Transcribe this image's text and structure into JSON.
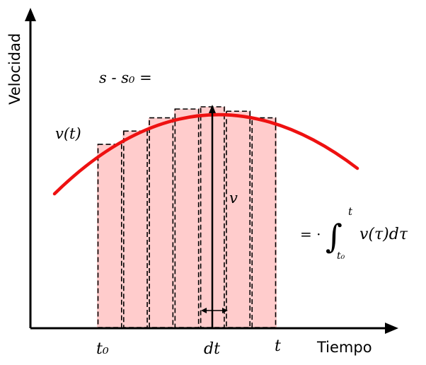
{
  "axes": {
    "y_title": "Velocidad",
    "x_title": "Tiempo"
  },
  "labels": {
    "displacement": "s - s₀ =",
    "curve": "v(t)",
    "velocity": "v",
    "t_start": "t₀",
    "t_end": "t",
    "dt": "dt"
  },
  "equation": {
    "equals": "= ·",
    "integrand": "v(τ)dτ",
    "upper_limit": "t",
    "lower_limit": "t₀"
  },
  "bars": {
    "count": 7,
    "relative_heights": [
      0.83,
      0.89,
      0.95,
      0.99,
      1.0,
      0.98,
      0.95
    ]
  },
  "colors": {
    "curve": "#ee1111",
    "bar_fill": "#ffcccc",
    "ink": "#000000"
  }
}
